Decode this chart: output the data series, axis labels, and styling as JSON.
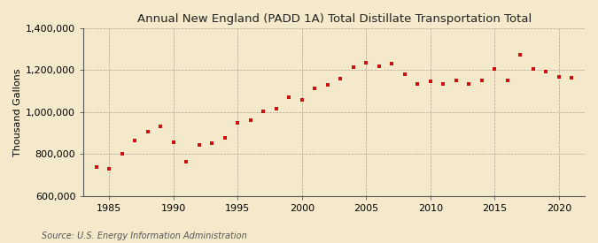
{
  "title": "Annual New England (PADD 1A) Total Distillate Transportation Total",
  "ylabel": "Thousand Gallons",
  "source": "Source: U.S. Energy Information Administration",
  "background_color": "#f5e9cc",
  "plot_background_color": "#f5e9cc",
  "marker_color": "#cc1111",
  "xlim": [
    1983,
    2022
  ],
  "ylim": [
    600000,
    1400000
  ],
  "xticks": [
    1985,
    1990,
    1995,
    2000,
    2005,
    2010,
    2015,
    2020
  ],
  "yticks": [
    600000,
    800000,
    1000000,
    1200000,
    1400000
  ],
  "years": [
    1984,
    1985,
    1986,
    1987,
    1988,
    1989,
    1990,
    1991,
    1992,
    1993,
    1994,
    1995,
    1996,
    1997,
    1998,
    1999,
    2000,
    2001,
    2002,
    2003,
    2004,
    2005,
    2006,
    2007,
    2008,
    2009,
    2010,
    2011,
    2012,
    2013,
    2014,
    2015,
    2016,
    2017,
    2018,
    2019,
    2020,
    2021
  ],
  "values": [
    740000,
    728000,
    800000,
    865000,
    905000,
    930000,
    855000,
    765000,
    845000,
    850000,
    875000,
    950000,
    960000,
    1005000,
    1015000,
    1070000,
    1060000,
    1115000,
    1130000,
    1160000,
    1215000,
    1235000,
    1220000,
    1230000,
    1180000,
    1135000,
    1145000,
    1135000,
    1150000,
    1135000,
    1150000,
    1205000,
    1150000,
    1275000,
    1205000,
    1195000,
    1170000,
    1165000
  ],
  "title_fontsize": 9.5,
  "axis_fontsize": 8,
  "source_fontsize": 7
}
